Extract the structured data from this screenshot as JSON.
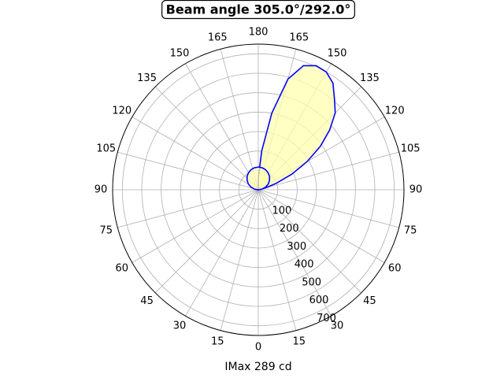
{
  "chart_data": {
    "type": "polar",
    "title": "Beam angle 305.0°/292.0°",
    "xlabel": "IMax 289 cd",
    "rlim": [
      0,
      750
    ],
    "rticks": [
      100,
      200,
      300,
      400,
      500,
      600,
      700
    ],
    "thetaticks": [
      0,
      15,
      30,
      45,
      60,
      75,
      90,
      105,
      120,
      135,
      150,
      165,
      180,
      {
        "value": 195,
        "label": "165"
      },
      {
        "value": 210,
        "label": "150"
      },
      {
        "value": 225,
        "label": "135"
      },
      {
        "value": 240,
        "label": "120"
      },
      {
        "value": 255,
        "label": "105"
      },
      {
        "value": 270,
        "label": "90"
      },
      {
        "value": 285,
        "label": "75"
      },
      {
        "value": 300,
        "label": "60"
      },
      {
        "value": 315,
        "label": "45"
      },
      {
        "value": 330,
        "label": "30"
      },
      {
        "value": 345,
        "label": "15"
      }
    ],
    "grid": true,
    "fill_color": "#ffffb0",
    "series": [
      {
        "color": "#0000ff",
        "theta": [
          180,
          175,
          170,
          165,
          160,
          155,
          150,
          145,
          140,
          135,
          130,
          125,
          120,
          115,
          110,
          105,
          100
        ],
        "r": [
          60,
          200,
          400,
          590,
          680,
          705,
          700,
          670,
          610,
          560,
          480,
          390,
          290,
          190,
          100,
          40,
          0
        ]
      },
      {
        "color": "#0000ff",
        "theta": [
          270,
          260,
          250,
          240,
          230,
          220,
          210,
          200,
          190,
          180,
          170,
          160,
          150,
          140,
          130,
          120,
          110,
          100,
          90
        ],
        "r": [
          0,
          20,
          40,
          59,
          75,
          90,
          101,
          110,
          115,
          117,
          115,
          110,
          101,
          90,
          75,
          59,
          40,
          20,
          0
        ]
      }
    ]
  }
}
